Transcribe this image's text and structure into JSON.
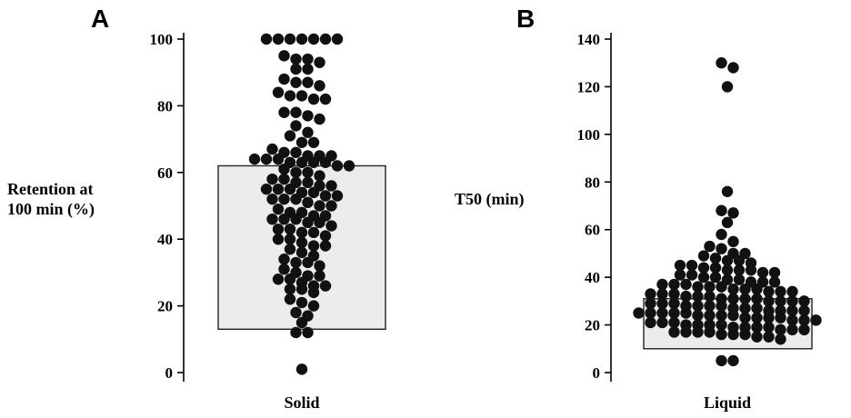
{
  "chart_data": [
    {
      "type": "scatter",
      "panel": "A",
      "ylabel_lines": [
        "Retention at",
        "100 min (%)"
      ],
      "category": "Solid",
      "ylim": [
        0,
        100
      ],
      "yticks": [
        0,
        20,
        40,
        60,
        80,
        100
      ],
      "box": {
        "low": 13,
        "high": 62
      },
      "points": [
        100,
        100,
        100,
        100,
        100,
        100,
        100,
        95,
        94,
        94,
        93,
        91,
        91,
        88,
        87,
        87,
        86,
        84,
        83,
        83,
        82,
        82,
        78,
        78,
        77,
        76,
        74,
        72,
        71,
        69,
        69,
        67,
        66,
        66,
        65,
        65,
        65,
        64,
        64,
        64,
        63,
        63,
        63,
        63,
        62,
        62,
        61,
        60,
        60,
        59,
        58,
        58,
        57,
        57,
        56,
        56,
        55,
        55,
        55,
        54,
        54,
        53,
        53,
        52,
        52,
        52,
        51,
        50,
        50,
        49,
        48,
        48,
        47,
        47,
        46,
        46,
        46,
        45,
        45,
        44,
        43,
        43,
        42,
        42,
        41,
        40,
        40,
        39,
        38,
        38,
        37,
        36,
        35,
        34,
        33,
        33,
        32,
        31,
        30,
        29,
        29,
        28,
        28,
        27,
        26,
        26,
        25,
        25,
        24,
        22,
        21,
        20,
        18,
        17,
        15,
        12,
        12,
        1
      ]
    },
    {
      "type": "scatter",
      "panel": "B",
      "ylabel": "T50 (min)",
      "category": "Liquid",
      "ylim": [
        0,
        140
      ],
      "yticks": [
        0,
        20,
        40,
        60,
        80,
        100,
        120,
        140
      ],
      "box": {
        "low": 10,
        "high": 31
      },
      "points": [
        130,
        128,
        120,
        76,
        68,
        67,
        63,
        58,
        55,
        53,
        52,
        50,
        50,
        49,
        48,
        47,
        47,
        46,
        45,
        45,
        44,
        44,
        43,
        43,
        43,
        42,
        42,
        41,
        41,
        40,
        40,
        39,
        39,
        38,
        38,
        38,
        37,
        37,
        37,
        36,
        36,
        36,
        35,
        35,
        35,
        34,
        34,
        34,
        33,
        33,
        33,
        32,
        32,
        32,
        31,
        31,
        31,
        31,
        30,
        30,
        30,
        30,
        29,
        29,
        29,
        28,
        28,
        28,
        28,
        27,
        27,
        27,
        26,
        26,
        26,
        26,
        25,
        25,
        25,
        25,
        25,
        24,
        24,
        24,
        24,
        23,
        23,
        23,
        23,
        22,
        22,
        22,
        21,
        21,
        21,
        20,
        20,
        20,
        20,
        19,
        19,
        19,
        19,
        18,
        18,
        18,
        17,
        17,
        17,
        17,
        16,
        16,
        16,
        15,
        15,
        14,
        5,
        5
      ]
    }
  ]
}
